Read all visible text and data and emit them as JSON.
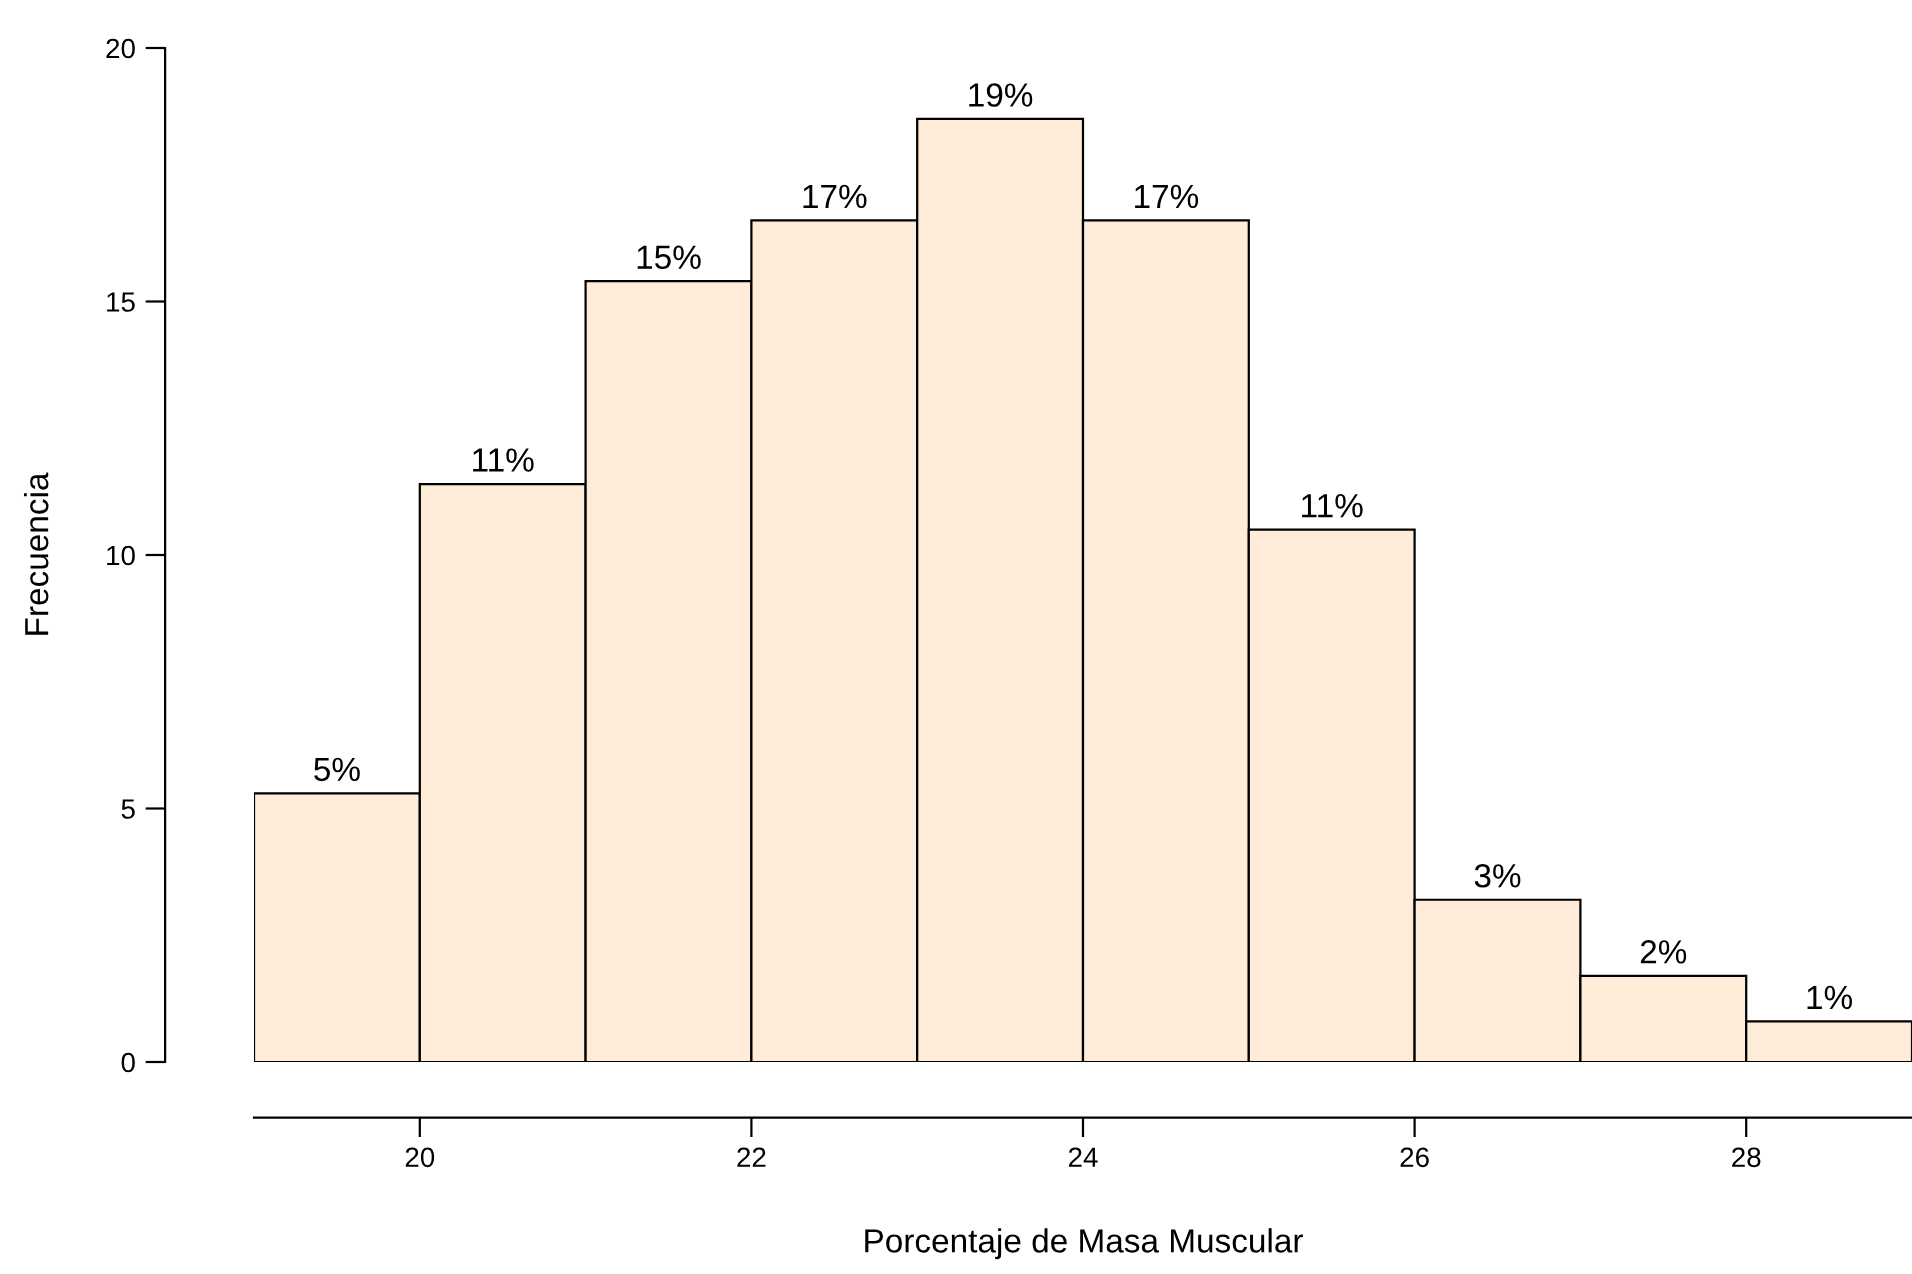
{
  "chart_data": {
    "type": "histogram",
    "xlabel": "Porcentaje de Masa Muscular",
    "ylabel": "Frecuencia",
    "bins": [
      19,
      20,
      21,
      22,
      23,
      24,
      25,
      26,
      27,
      28,
      29
    ],
    "values": [
      5.3,
      11.4,
      15.4,
      16.6,
      18.6,
      16.6,
      10.5,
      3.2,
      1.7,
      0.8
    ],
    "value_labels": [
      "5%",
      "11%",
      "15%",
      "17%",
      "19%",
      "17%",
      "11%",
      "3%",
      "2%",
      "1%"
    ],
    "color": "#feebd8",
    "xlim": [
      19,
      29
    ],
    "xticks": [
      20,
      22,
      24,
      26,
      28
    ],
    "ylim": [
      0,
      20
    ],
    "yticks": [
      0,
      5,
      10,
      15,
      20
    ],
    "grid": false,
    "legend": false
  }
}
